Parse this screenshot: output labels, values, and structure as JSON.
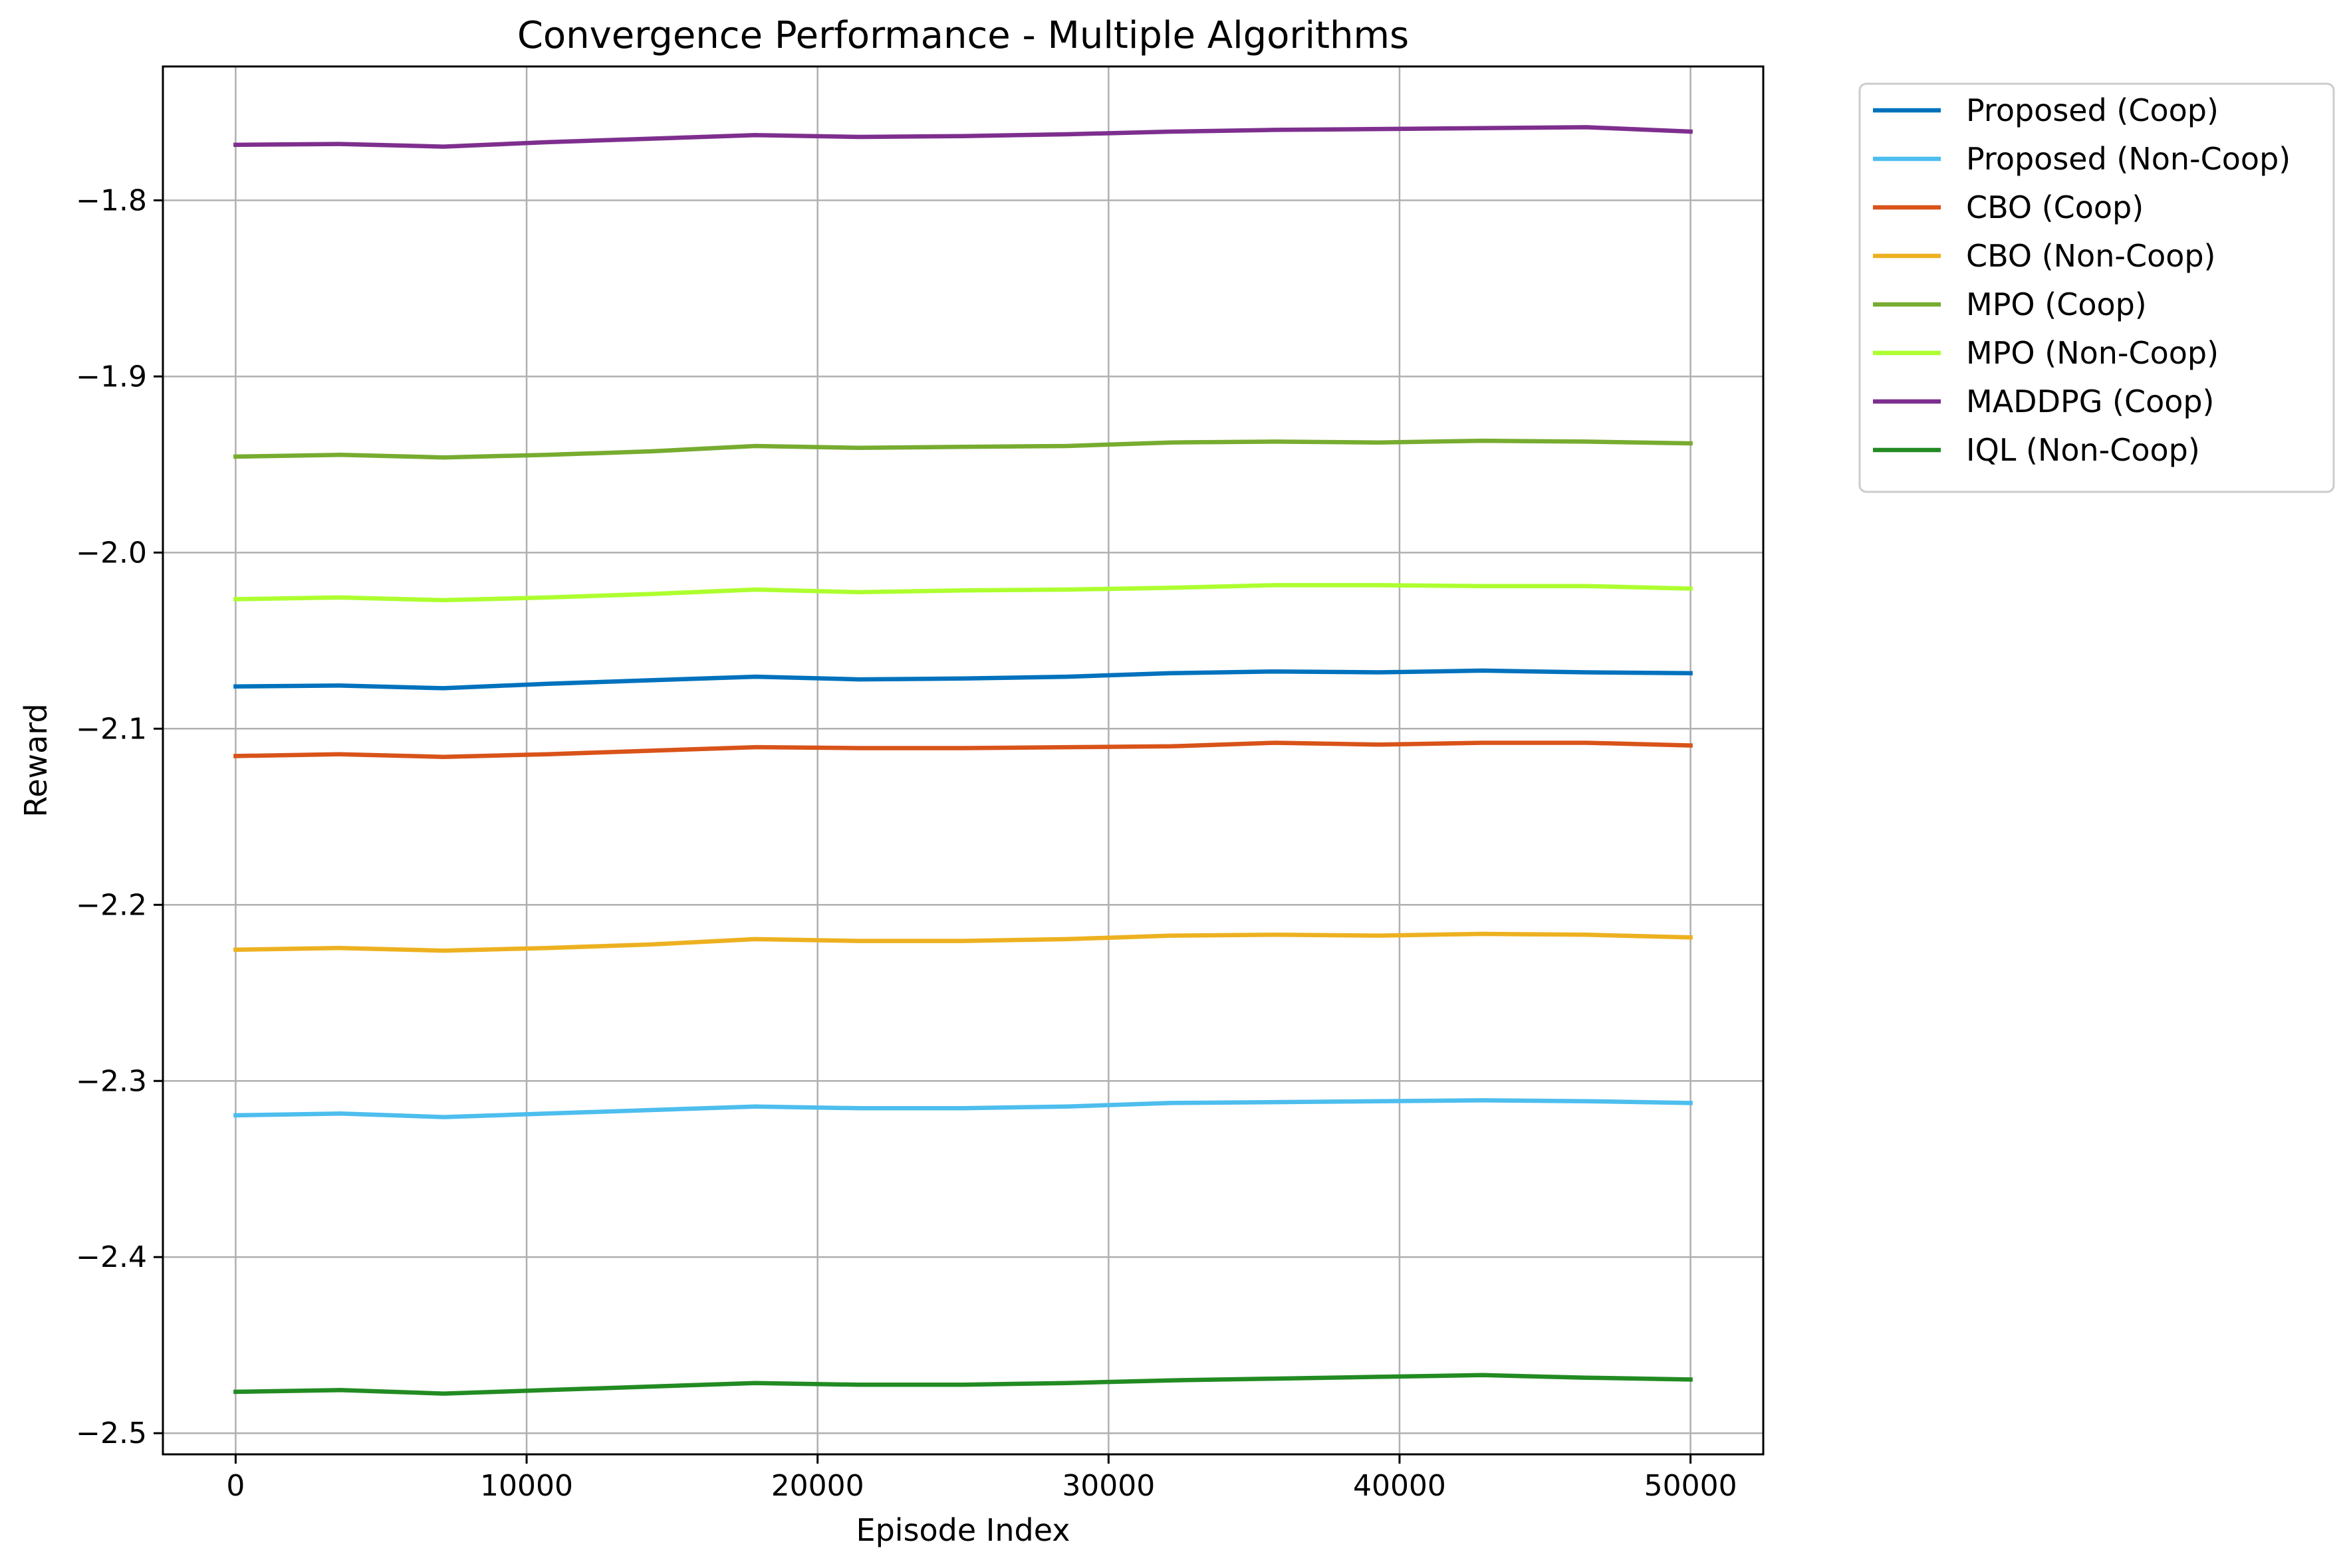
{
  "chart_data": {
    "type": "line",
    "title": "Convergence Performance - Multiple Algorithms",
    "xlabel": "Episode Index",
    "ylabel": "Reward",
    "xlim": [
      -2500,
      52500
    ],
    "ylim": [
      -2.512,
      -1.724
    ],
    "xticks": [
      0,
      10000,
      20000,
      30000,
      40000,
      50000
    ],
    "xtick_labels": [
      "0",
      "10000",
      "20000",
      "30000",
      "40000",
      "50000"
    ],
    "yticks": [
      -1.8,
      -1.9,
      -2.0,
      -2.1,
      -2.2,
      -2.3,
      -2.4,
      -2.5
    ],
    "ytick_labels": [
      "−1.8",
      "−1.9",
      "−2.0",
      "−2.1",
      "−2.2",
      "−2.3",
      "−2.4",
      "−2.5"
    ],
    "grid": true,
    "legend_position": "outside-top-right",
    "x": [
      0,
      3571,
      7143,
      10714,
      14286,
      17857,
      21429,
      25000,
      28571,
      32143,
      35714,
      39286,
      42857,
      46429,
      50000
    ],
    "series": [
      {
        "name": "Proposed (Coop)",
        "color": "#0072BD",
        "values": [
          -2.076,
          -2.0755,
          -2.077,
          -2.0745,
          -2.0725,
          -2.0705,
          -2.072,
          -2.0715,
          -2.0705,
          -2.0685,
          -2.0675,
          -2.068,
          -2.067,
          -2.068,
          -2.0685
        ]
      },
      {
        "name": "Proposed (Non-Coop)",
        "color": "#4DBEEE",
        "values": [
          -2.3195,
          -2.3185,
          -2.3205,
          -2.3185,
          -2.3165,
          -2.3145,
          -2.3155,
          -2.3155,
          -2.3145,
          -2.3125,
          -2.312,
          -2.3115,
          -2.311,
          -2.3115,
          -2.3125
        ]
      },
      {
        "name": "CBO (Coop)",
        "color": "#D95319",
        "values": [
          -2.1155,
          -2.1145,
          -2.116,
          -2.1145,
          -2.1125,
          -2.1105,
          -2.111,
          -2.111,
          -2.1105,
          -2.11,
          -2.108,
          -2.109,
          -2.108,
          -2.108,
          -2.1095
        ]
      },
      {
        "name": "CBO (Non-Coop)",
        "color": "#EDB120",
        "values": [
          -2.2255,
          -2.2245,
          -2.226,
          -2.2245,
          -2.2225,
          -2.2195,
          -2.2205,
          -2.2205,
          -2.2195,
          -2.2175,
          -2.217,
          -2.2175,
          -2.2165,
          -2.217,
          -2.2185
        ]
      },
      {
        "name": "MPO (Coop)",
        "color": "#77AC30",
        "values": [
          -1.9455,
          -1.9445,
          -1.946,
          -1.9445,
          -1.9425,
          -1.9395,
          -1.9405,
          -1.94,
          -1.9395,
          -1.9375,
          -1.937,
          -1.9375,
          -1.9365,
          -1.937,
          -1.938
        ]
      },
      {
        "name": "MPO (Non-Coop)",
        "color": "#ADFF2F",
        "values": [
          -2.0265,
          -2.0255,
          -2.027,
          -2.0255,
          -2.0235,
          -2.021,
          -2.0225,
          -2.0215,
          -2.021,
          -2.02,
          -2.0185,
          -2.0185,
          -2.019,
          -2.019,
          -2.0205
        ]
      },
      {
        "name": "MADDPG (Coop)",
        "color": "#7E2F8E",
        "values": [
          -1.7685,
          -1.768,
          -1.7695,
          -1.767,
          -1.765,
          -1.763,
          -1.764,
          -1.7635,
          -1.7625,
          -1.761,
          -1.76,
          -1.7595,
          -1.759,
          -1.7585,
          -1.761
        ]
      },
      {
        "name": "IQL (Non-Coop)",
        "color": "#228B22",
        "values": [
          -2.4765,
          -2.4755,
          -2.4775,
          -2.4755,
          -2.4735,
          -2.4715,
          -2.4725,
          -2.4725,
          -2.4715,
          -2.47,
          -2.469,
          -2.468,
          -2.467,
          -2.4685,
          -2.4695
        ]
      }
    ]
  }
}
